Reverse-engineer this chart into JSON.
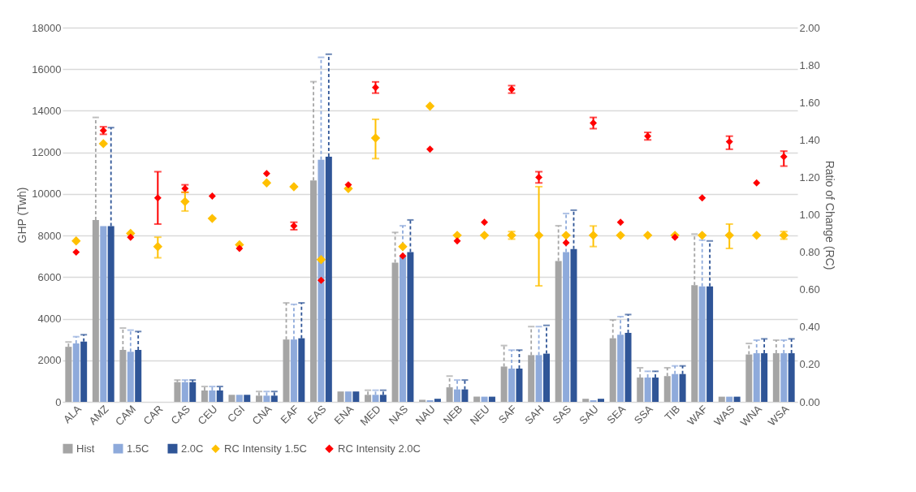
{
  "chart_data": {
    "type": "bar",
    "ylabel": "GHP (Twh)",
    "y2label": "Ratio of Change (RC)",
    "categories": [
      "ALA",
      "AMZ",
      "CAM",
      "CAR",
      "CAS",
      "CEU",
      "CGI",
      "CNA",
      "EAF",
      "EAS",
      "ENA",
      "MED",
      "NAS",
      "NAU",
      "NEB",
      "NEU",
      "SAF",
      "SAH",
      "SAS",
      "SAU",
      "SEA",
      "SSA",
      "TIB",
      "WAF",
      "WAS",
      "WNA",
      "WSA"
    ],
    "series": [
      {
        "name": "Hist",
        "type": "bar",
        "color": "#a5a5a5",
        "values": [
          2650,
          8750,
          2500,
          0,
          950,
          550,
          340,
          300,
          3000,
          10650,
          500,
          340,
          6700,
          100,
          700,
          250,
          1700,
          2250,
          6770,
          150,
          3060,
          1170,
          1240,
          5610,
          250,
          2280,
          2340
        ],
        "errors": [
          [
            2650,
            2880
          ],
          [
            8750,
            13680
          ],
          [
            2500,
            3550
          ],
          null,
          [
            950,
            1050
          ],
          [
            550,
            740
          ],
          null,
          [
            300,
            500
          ],
          [
            3000,
            4760
          ],
          [
            10650,
            15400
          ],
          null,
          [
            340,
            560
          ],
          [
            6700,
            8150
          ],
          null,
          [
            700,
            1240
          ],
          null,
          [
            1700,
            2710
          ],
          [
            2250,
            3620
          ],
          [
            6770,
            8470
          ],
          null,
          [
            3060,
            3940
          ],
          [
            1170,
            1640
          ],
          [
            1240,
            1640
          ],
          [
            5610,
            8070
          ],
          null,
          [
            2280,
            2810
          ],
          [
            2340,
            2970
          ]
        ]
      },
      {
        "name": "1.5C",
        "type": "bar",
        "color": "#8eaadb",
        "values": [
          2810,
          8450,
          2410,
          0,
          950,
          550,
          340,
          300,
          3000,
          11650,
          500,
          340,
          7000,
          80,
          600,
          250,
          1600,
          2250,
          7200,
          80,
          3230,
          1170,
          1340,
          5550,
          250,
          2340,
          2340
        ],
        "errors": [
          [
            2810,
            3135
          ],
          null,
          [
            2410,
            3450
          ],
          null,
          [
            950,
            1050
          ],
          [
            550,
            740
          ],
          null,
          [
            300,
            500
          ],
          [
            3000,
            4690
          ],
          [
            11650,
            16570
          ],
          null,
          [
            340,
            560
          ],
          [
            7000,
            8470
          ],
          null,
          [
            600,
            1050
          ],
          null,
          [
            1600,
            2490
          ],
          [
            2250,
            3620
          ],
          [
            7200,
            9060
          ],
          null,
          [
            3230,
            4100
          ],
          [
            1170,
            1470
          ],
          [
            1340,
            1730
          ],
          [
            5550,
            7780
          ],
          null,
          [
            2340,
            2970
          ],
          [
            2340,
            2970
          ]
        ]
      },
      {
        "name": "2.0C",
        "type": "bar",
        "color": "#2f5597",
        "values": [
          2900,
          8450,
          2500,
          0,
          950,
          550,
          340,
          300,
          3060,
          11790,
          500,
          340,
          7200,
          150,
          600,
          250,
          1600,
          2320,
          7350,
          150,
          3320,
          1170,
          1340,
          5550,
          250,
          2340,
          2340
        ],
        "errors": [
          [
            2900,
            3230
          ],
          [
            8450,
            13190
          ],
          [
            2500,
            3385
          ],
          null,
          [
            950,
            1050
          ],
          [
            550,
            740
          ],
          null,
          [
            300,
            500
          ],
          [
            3060,
            4760
          ],
          [
            11790,
            16720
          ],
          null,
          [
            340,
            560
          ],
          [
            7200,
            8750
          ],
          null,
          [
            600,
            1050
          ],
          null,
          [
            1600,
            2490
          ],
          [
            2320,
            3680
          ],
          [
            7350,
            9220
          ],
          null,
          [
            3320,
            4200
          ],
          [
            1170,
            1470
          ],
          [
            1340,
            1730
          ],
          [
            5550,
            7740
          ],
          null,
          [
            2340,
            3030
          ],
          [
            2340,
            3030
          ]
        ]
      },
      {
        "name": "RC Intensity 1.5C",
        "type": "scatter",
        "axis": "y2",
        "color": "#ffc000",
        "values": [
          0.86,
          1.38,
          0.9,
          0.83,
          1.07,
          0.98,
          0.84,
          1.17,
          1.15,
          0.76,
          1.14,
          1.41,
          0.83,
          1.58,
          0.89,
          0.89,
          0.89,
          0.89,
          0.89,
          0.89,
          0.89,
          0.89,
          0.89,
          0.89,
          0.89,
          0.89,
          0.89
        ],
        "errors": [
          null,
          null,
          null,
          [
            0.77,
            0.88
          ],
          [
            1.02,
            1.12
          ],
          null,
          null,
          null,
          null,
          null,
          null,
          [
            1.3,
            1.51
          ],
          null,
          null,
          null,
          null,
          [
            0.87,
            0.91
          ],
          [
            0.62,
            1.15
          ],
          null,
          [
            0.83,
            0.94
          ],
          null,
          null,
          null,
          null,
          [
            0.82,
            0.95
          ],
          null,
          [
            0.87,
            0.91
          ]
        ]
      },
      {
        "name": "RC Intensity 2.0C",
        "type": "scatter",
        "axis": "y2",
        "color": "#ff0000",
        "values": [
          0.8,
          1.45,
          0.88,
          1.09,
          1.14,
          1.1,
          0.82,
          1.22,
          0.94,
          0.65,
          1.16,
          1.68,
          0.78,
          1.35,
          0.86,
          0.96,
          1.67,
          1.2,
          0.85,
          1.49,
          0.96,
          1.42,
          0.88,
          1.09,
          1.39,
          1.17,
          1.31
        ],
        "errors": [
          null,
          [
            1.43,
            1.47
          ],
          null,
          [
            0.95,
            1.23
          ],
          [
            1.12,
            1.16
          ],
          null,
          null,
          null,
          [
            0.92,
            0.96
          ],
          null,
          null,
          [
            1.65,
            1.71
          ],
          null,
          null,
          null,
          null,
          [
            1.65,
            1.69
          ],
          [
            1.17,
            1.23
          ],
          null,
          [
            1.46,
            1.52
          ],
          null,
          [
            1.4,
            1.44
          ],
          null,
          null,
          [
            1.35,
            1.42
          ],
          null,
          [
            1.26,
            1.34
          ]
        ]
      }
    ],
    "ylim": [
      0,
      18000
    ],
    "yticks": [
      0,
      2000,
      4000,
      6000,
      8000,
      10000,
      12000,
      14000,
      16000,
      18000
    ],
    "y2lim": [
      0,
      2
    ],
    "y2ticks": [
      {
        "value": 0,
        "label": "0.00"
      },
      {
        "value": 0.2,
        "label": "0.20"
      },
      {
        "value": 0.4,
        "label": "0.40"
      },
      {
        "value": 0.6,
        "label": "0.60"
      },
      {
        "value": 0.8,
        "label": "0.80"
      },
      {
        "value": 1,
        "label": "1.00"
      },
      {
        "value": 1.2,
        "label": "1.20"
      },
      {
        "value": 1.4,
        "label": "1.40"
      },
      {
        "value": 1.6,
        "label": "1.60"
      },
      {
        "value": 1.8,
        "label": "1.80"
      },
      {
        "value": 2,
        "label": "2.00"
      }
    ],
    "grid": "y",
    "legend": "bottom",
    "marker": "diamond"
  }
}
